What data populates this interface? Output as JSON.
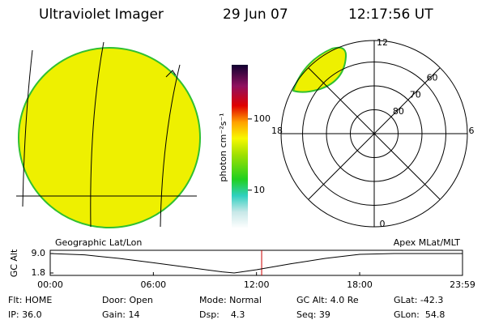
{
  "header": {
    "title": "Ultraviolet Imager",
    "date": "29 Jun 07",
    "time": "12:17:56 UT"
  },
  "colorbar": {
    "label": "photon cm⁻²s⁻¹",
    "log": true,
    "lim": [
      2.9,
      577
    ],
    "ticks": [
      10,
      100
    ]
  },
  "polar": {
    "mlt_labels": [
      12,
      6,
      0,
      18
    ],
    "lat_rings": [
      80,
      70,
      60
    ]
  },
  "panel_labels": {
    "left": "Geographic Lat/Lon",
    "right": "Apex MLat/MLT"
  },
  "chart_data": {
    "type": "line",
    "ylabel": "GC Alt",
    "x": [
      0,
      2,
      4,
      6,
      8,
      10,
      10.7,
      12,
      14,
      16,
      18,
      20,
      23.983
    ],
    "values": [
      9.0,
      8.5,
      7.2,
      5.6,
      3.9,
      2.2,
      1.8,
      3.0,
      5.2,
      7.2,
      8.7,
      9.0,
      9.0
    ],
    "color": "#000000",
    "ylim": [
      1.8,
      9.0
    ],
    "yticks": [
      {
        "value": 9.0,
        "label": "9.0"
      },
      {
        "value": 1.8,
        "label": "1.8"
      }
    ],
    "xlim": [
      0,
      23.983
    ],
    "xticks": [
      {
        "value": 0,
        "label": "00:00"
      },
      {
        "value": 6,
        "label": "06:00"
      },
      {
        "value": 12,
        "label": "12:00"
      },
      {
        "value": 18,
        "label": "18:00"
      },
      {
        "value": 23.983,
        "label": "23:59"
      }
    ],
    "marker_x": 12.299,
    "marker_color": "#cc0000"
  },
  "footer": {
    "rows": [
      [
        "Flt: HOME",
        "Door: Open",
        "Mode: Normal",
        "GC Alt: 4.0 Re",
        "GLat: -42.3"
      ],
      [
        "IP: 36.0",
        "Gain: 14",
        "Dsp:    4.3",
        "Seq: 39",
        "GLon:  54.8"
      ]
    ]
  }
}
